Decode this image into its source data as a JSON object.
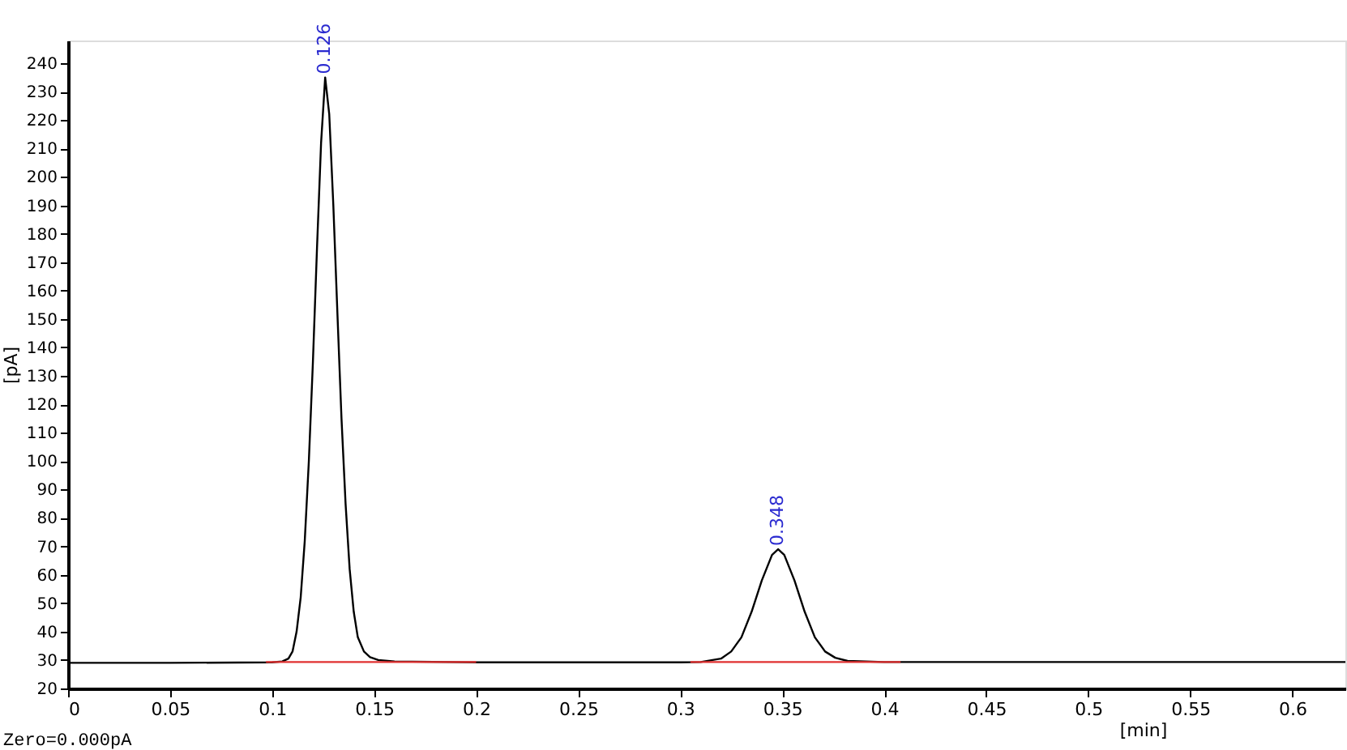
{
  "chart_data": {
    "type": "line",
    "xlabel": "[min]",
    "ylabel": "[pA]",
    "xlim": [
      0,
      0.626
    ],
    "ylim": [
      20,
      248
    ],
    "xticks": [
      0,
      0.05,
      0.1,
      0.15,
      0.2,
      0.25,
      0.3,
      0.35,
      0.4,
      0.45,
      0.5,
      0.55,
      0.6
    ],
    "yticks": [
      20,
      30,
      40,
      50,
      60,
      70,
      80,
      90,
      100,
      110,
      120,
      130,
      140,
      150,
      160,
      170,
      180,
      190,
      200,
      210,
      220,
      230,
      240
    ],
    "grid": false,
    "legend": false,
    "marker": "none",
    "line_style": "solid",
    "series": [
      {
        "type": "line",
        "color": "#000000",
        "x": [
          0,
          0.05,
          0.1,
          0.105,
          0.108,
          0.11,
          0.112,
          0.114,
          0.116,
          0.118,
          0.12,
          0.122,
          0.124,
          0.126,
          0.128,
          0.13,
          0.132,
          0.134,
          0.136,
          0.138,
          0.14,
          0.142,
          0.145,
          0.148,
          0.152,
          0.16,
          0.2,
          0.3,
          0.31,
          0.32,
          0.325,
          0.33,
          0.335,
          0.34,
          0.345,
          0.348,
          0.351,
          0.356,
          0.361,
          0.366,
          0.371,
          0.376,
          0.382,
          0.4,
          0.5,
          0.626
        ],
        "values": [
          29,
          29,
          29.2,
          29.5,
          30.5,
          33,
          40,
          52,
          72,
          100,
          135,
          175,
          212,
          235,
          222,
          190,
          152,
          115,
          85,
          62,
          47,
          38,
          33,
          31,
          30,
          29.5,
          29.2,
          29.2,
          29.3,
          30.5,
          33,
          38,
          47,
          58,
          67,
          69,
          67,
          58,
          47,
          38,
          33,
          30.8,
          29.7,
          29.3,
          29.3,
          29.3
        ]
      },
      {
        "type": "line",
        "color": "#e03030",
        "x": [
          0.097,
          0.2
        ],
        "values": [
          29.3,
          29.3
        ]
      },
      {
        "type": "line",
        "color": "#e03030",
        "x": [
          0.305,
          0.408
        ],
        "values": [
          29.3,
          29.3
        ]
      }
    ],
    "annotations": [
      {
        "text": "0.126",
        "x": 0.126,
        "y": 235
      },
      {
        "text": "0.348",
        "x": 0.348,
        "y": 69
      },
      "Zero=0.000pA"
    ]
  }
}
